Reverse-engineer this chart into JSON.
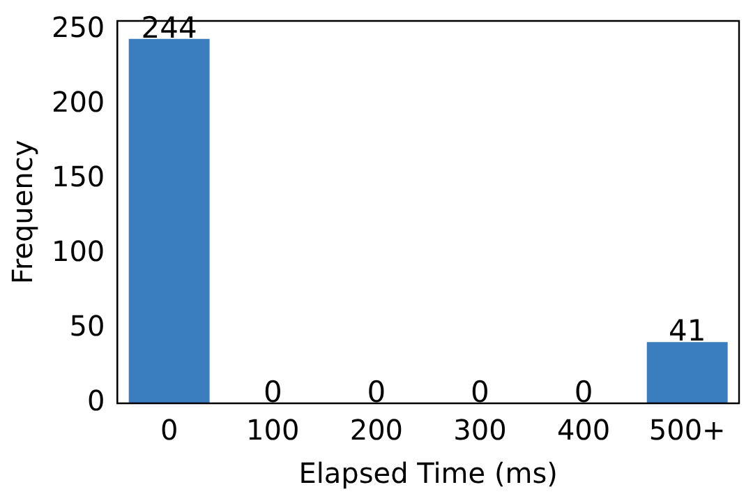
{
  "chart_data": {
    "type": "bar",
    "xlabel": "Elapsed Time (ms)",
    "ylabel": "Frequency",
    "categories": [
      "0",
      "100",
      "200",
      "300",
      "400",
      "500+"
    ],
    "values": [
      244,
      0,
      0,
      0,
      0,
      41
    ],
    "color": "#3a7ebf",
    "ylim": [
      0,
      256
    ],
    "yticks": [
      0,
      50,
      100,
      150,
      200,
      250
    ],
    "grid": false,
    "legend": false,
    "data_labels": true
  }
}
